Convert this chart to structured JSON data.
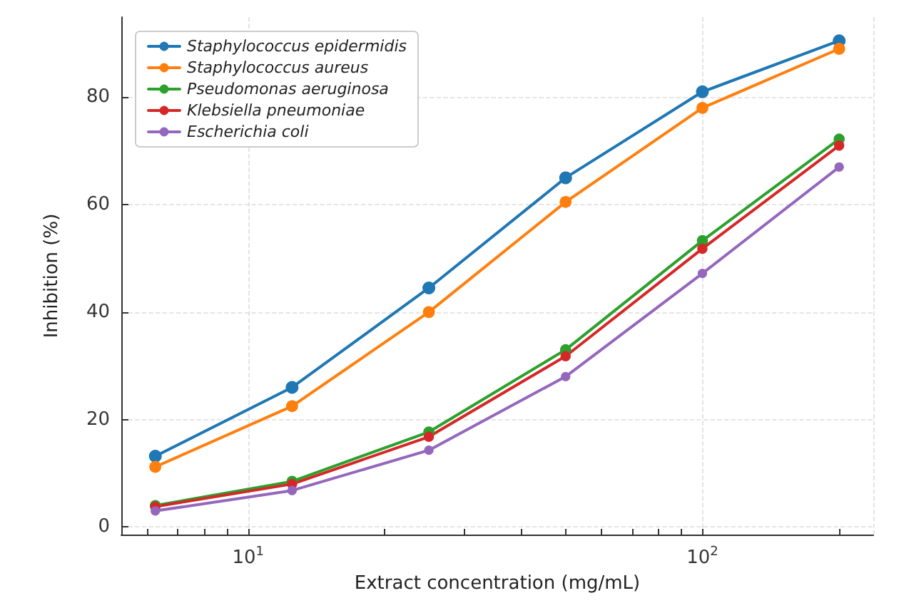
{
  "chart_data": {
    "type": "line",
    "xlabel": "Extract concentration (mg/mL)",
    "ylabel": "Inhibition (%)",
    "x": [
      6.25,
      12.5,
      25,
      50,
      100,
      200
    ],
    "series": [
      {
        "name": "Staphylococcus epidermidis",
        "color": "#1f77b4",
        "values": [
          13.2,
          26,
          44.5,
          65,
          81,
          90.5
        ]
      },
      {
        "name": "Staphylococcus aureus",
        "color": "#ff7f0e",
        "values": [
          11.2,
          22.5,
          40,
          60.5,
          78,
          89
        ]
      },
      {
        "name": "Pseudomonas aeruginosa",
        "color": "#2ca02c",
        "values": [
          4,
          8.5,
          17.7,
          33,
          53.3,
          72.2
        ]
      },
      {
        "name": "Klebsiella pneumoniae",
        "color": "#d62728",
        "values": [
          3.8,
          8,
          16.8,
          31.8,
          51.8,
          71
        ]
      },
      {
        "name": "Escherichia coli",
        "color": "#9467bd",
        "values": [
          3,
          6.8,
          14.3,
          28,
          47.2,
          67
        ]
      }
    ],
    "log": "x",
    "xlim": [
      5.26,
      237.8
    ],
    "xticks": [
      {
        "value": 6,
        "label": null
      },
      {
        "value": 7,
        "label": null
      },
      {
        "value": 8,
        "label": null
      },
      {
        "value": 9,
        "label": null
      },
      {
        "value": 10,
        "label": "10$^{1}$"
      },
      {
        "value": 20,
        "label": null
      },
      {
        "value": 30,
        "label": null
      },
      {
        "value": 40,
        "label": null
      },
      {
        "value": 50,
        "label": null
      },
      {
        "value": 60,
        "label": null
      },
      {
        "value": 70,
        "label": null
      },
      {
        "value": 80,
        "label": null
      },
      {
        "value": 90,
        "label": null
      },
      {
        "value": 100,
        "label": "10$^{2}$"
      },
      {
        "value": 200,
        "label": null
      }
    ],
    "ylim": [
      -1.4,
      94.9
    ],
    "yticks": [
      0,
      20,
      40,
      60,
      80
    ],
    "grid": true,
    "legend": "top left",
    "marker": "circle",
    "line_style": "solid"
  }
}
